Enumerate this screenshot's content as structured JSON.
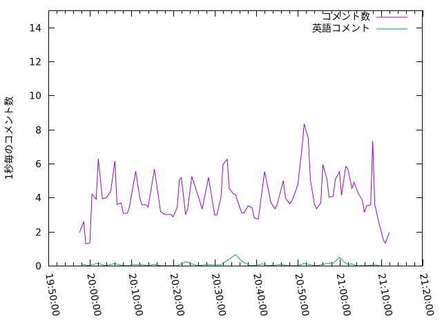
{
  "chart_data": {
    "type": "line",
    "title": "",
    "xlabel": "",
    "ylabel": "1秒毎のコメント数",
    "xlim": [
      "19:50:00",
      "21:20:00"
    ],
    "ylim": [
      0,
      15
    ],
    "xticks": [
      "19:50:00",
      "20:00:00",
      "20:10:00",
      "20:20:00",
      "20:30:00",
      "20:40:00",
      "20:50:00",
      "21:00:00",
      "21:10:00",
      "21:20:00"
    ],
    "yticks": [
      "0",
      "2",
      "4",
      "6",
      "8",
      "10",
      "12",
      "14"
    ],
    "grid": false,
    "legend_position": "top-right",
    "series": [
      {
        "name": "コメント数",
        "color": "#9400d3",
        "points": [
          [
            "19:57:30",
            1.95
          ],
          [
            "19:58:30",
            2.59
          ],
          [
            "19:59:00",
            1.29
          ],
          [
            "20:00:00",
            1.34
          ],
          [
            "20:00:30",
            4.21
          ],
          [
            "20:01:30",
            3.89
          ],
          [
            "20:02:00",
            6.28
          ],
          [
            "20:03:00",
            3.93
          ],
          [
            "20:04:00",
            4.0
          ],
          [
            "20:05:00",
            4.38
          ],
          [
            "20:06:00",
            6.15
          ],
          [
            "20:06:30",
            3.6
          ],
          [
            "20:07:30",
            3.68
          ],
          [
            "20:08:00",
            3.08
          ],
          [
            "20:09:00",
            3.08
          ],
          [
            "20:09:30",
            3.44
          ],
          [
            "20:11:00",
            5.55
          ],
          [
            "20:12:00",
            3.98
          ],
          [
            "20:12:30",
            3.58
          ],
          [
            "20:13:30",
            3.58
          ],
          [
            "20:14:00",
            3.44
          ],
          [
            "20:15:30",
            5.67
          ],
          [
            "20:17:00",
            3.17
          ],
          [
            "20:18:00",
            3.01
          ],
          [
            "20:19:30",
            3.01
          ],
          [
            "20:20:00",
            2.87
          ],
          [
            "20:21:00",
            3.44
          ],
          [
            "20:21:30",
            5.03
          ],
          [
            "20:22:00",
            5.17
          ],
          [
            "20:23:00",
            3.0
          ],
          [
            "20:23:30",
            3.32
          ],
          [
            "20:24:30",
            5.24
          ],
          [
            "20:26:30",
            3.72
          ],
          [
            "20:27:00",
            3.32
          ],
          [
            "20:28:30",
            5.19
          ],
          [
            "20:30:00",
            2.97
          ],
          [
            "20:30:30",
            2.97
          ],
          [
            "20:31:30",
            3.98
          ],
          [
            "20:32:00",
            5.95
          ],
          [
            "20:33:00",
            6.25
          ],
          [
            "20:33:30",
            4.53
          ],
          [
            "20:34:30",
            4.22
          ],
          [
            "20:35:00",
            4.17
          ],
          [
            "20:36:30",
            3.1
          ],
          [
            "20:37:00",
            3.1
          ],
          [
            "20:38:00",
            3.51
          ],
          [
            "20:39:00",
            3.41
          ],
          [
            "20:39:30",
            2.81
          ],
          [
            "20:40:30",
            2.74
          ],
          [
            "20:42:00",
            5.53
          ],
          [
            "20:43:30",
            3.71
          ],
          [
            "20:44:30",
            3.35
          ],
          [
            "20:45:00",
            3.58
          ],
          [
            "20:46:30",
            5.0
          ],
          [
            "20:47:00",
            3.98
          ],
          [
            "20:48:00",
            3.64
          ],
          [
            "20:48:30",
            3.78
          ],
          [
            "20:49:30",
            4.41
          ],
          [
            "20:50:00",
            4.77
          ],
          [
            "20:51:00",
            6.95
          ],
          [
            "20:51:30",
            8.33
          ],
          [
            "20:52:30",
            7.49
          ],
          [
            "20:53:00",
            5.06
          ],
          [
            "20:54:00",
            3.6
          ],
          [
            "20:54:30",
            3.35
          ],
          [
            "20:55:30",
            3.68
          ],
          [
            "20:56:00",
            5.94
          ],
          [
            "20:57:00",
            5.06
          ],
          [
            "20:57:30",
            4.02
          ],
          [
            "20:58:30",
            4.08
          ],
          [
            "20:59:00",
            5.06
          ],
          [
            "21:00:00",
            5.53
          ],
          [
            "21:00:30",
            4.14
          ],
          [
            "21:01:30",
            5.82
          ],
          [
            "21:02:00",
            5.71
          ],
          [
            "21:03:00",
            4.55
          ],
          [
            "21:03:30",
            4.9
          ],
          [
            "21:04:30",
            4.25
          ],
          [
            "21:05:30",
            3.85
          ],
          [
            "21:06:00",
            3.13
          ],
          [
            "21:06:30",
            3.51
          ],
          [
            "21:07:30",
            3.58
          ],
          [
            "21:08:00",
            7.33
          ],
          [
            "21:08:30",
            3.58
          ],
          [
            "21:09:30",
            2.5
          ],
          [
            "21:10:30",
            1.55
          ],
          [
            "21:11:00",
            1.32
          ],
          [
            "21:12:00",
            1.96
          ]
        ]
      },
      {
        "name": "英語コメント",
        "color": "#009e73",
        "points": [
          [
            "19:58:00",
            0
          ],
          [
            "19:58:30",
            0.07
          ],
          [
            "19:59:30",
            0.02
          ],
          [
            "20:00:30",
            0.05
          ],
          [
            "20:02:00",
            0.15
          ],
          [
            "20:03:00",
            0.05
          ],
          [
            "20:04:00",
            0
          ],
          [
            "20:06:00",
            0.13
          ],
          [
            "20:07:00",
            0.05
          ],
          [
            "20:08:30",
            0
          ],
          [
            "20:09:30",
            0
          ],
          [
            "20:10:00",
            0.05
          ],
          [
            "20:12:30",
            0.05
          ],
          [
            "20:14:00",
            0.02
          ],
          [
            "20:15:30",
            0.07
          ],
          [
            "20:17:00",
            0
          ],
          [
            "20:19:30",
            0
          ],
          [
            "20:21:00",
            0
          ],
          [
            "20:23:00",
            0.23
          ],
          [
            "20:24:30",
            0.1
          ],
          [
            "20:26:00",
            0
          ],
          [
            "20:27:30",
            0.05
          ],
          [
            "20:30:00",
            0.05
          ],
          [
            "20:31:30",
            0.05
          ],
          [
            "20:35:00",
            0.65
          ],
          [
            "20:36:30",
            0.27
          ],
          [
            "20:37:30",
            0.13
          ],
          [
            "20:38:30",
            0
          ],
          [
            "20:40:30",
            0.05
          ],
          [
            "20:41:30",
            0.1
          ],
          [
            "20:43:00",
            0
          ],
          [
            "20:46:00",
            0.07
          ],
          [
            "20:47:30",
            0
          ],
          [
            "20:50:00",
            0
          ],
          [
            "20:51:30",
            0.13
          ],
          [
            "20:53:00",
            0.05
          ],
          [
            "20:54:30",
            0
          ],
          [
            "20:56:00",
            0.07
          ],
          [
            "20:57:30",
            0.15
          ],
          [
            "20:58:30",
            0.15
          ],
          [
            "21:00:00",
            0.5
          ],
          [
            "21:01:00",
            0.23
          ],
          [
            "21:02:00",
            0.07
          ],
          [
            "21:03:00",
            0.1
          ],
          [
            "21:04:00",
            0
          ],
          [
            "21:06:30",
            0
          ],
          [
            "21:08:30",
            0.05
          ],
          [
            "21:09:30",
            0
          ]
        ]
      }
    ]
  }
}
